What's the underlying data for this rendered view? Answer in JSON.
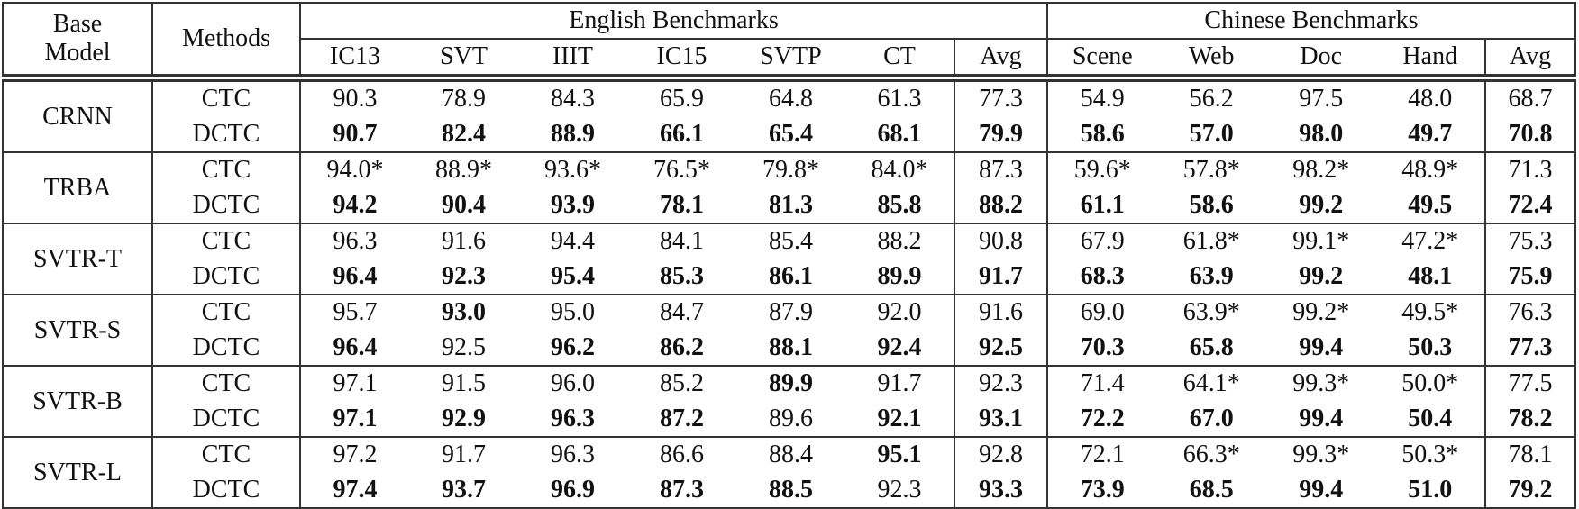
{
  "header": {
    "base_model": "Base Model",
    "base_model_line1": "Base",
    "base_model_line2": "Model",
    "methods": "Methods",
    "english_group": "English Benchmarks",
    "chinese_group": "Chinese Benchmarks",
    "english_columns": [
      "IC13",
      "SVT",
      "IIIT",
      "IC15",
      "SVTP",
      "CT",
      "Avg"
    ],
    "chinese_columns": [
      "Scene",
      "Web",
      "Doc",
      "Hand",
      "Avg"
    ]
  },
  "groups": [
    {
      "base_model": "CRNN",
      "rows": [
        {
          "method": "CTC",
          "values": [
            "90.3",
            "78.9",
            "84.3",
            "65.9",
            "64.8",
            "61.3",
            "77.3",
            "54.9",
            "56.2",
            "97.5",
            "48.0",
            "68.7"
          ],
          "bold": []
        },
        {
          "method": "DCTC",
          "values": [
            "90.7",
            "82.4",
            "88.9",
            "66.1",
            "65.4",
            "68.1",
            "79.9",
            "58.6",
            "57.0",
            "98.0",
            "49.7",
            "70.8"
          ],
          "bold": [
            0,
            1,
            2,
            3,
            4,
            5,
            6,
            7,
            8,
            9,
            10,
            11
          ]
        }
      ]
    },
    {
      "base_model": "TRBA",
      "rows": [
        {
          "method": "CTC",
          "values": [
            "94.0*",
            "88.9*",
            "93.6*",
            "76.5*",
            "79.8*",
            "84.0*",
            "87.3",
            "59.6*",
            "57.8*",
            "98.2*",
            "48.9*",
            "71.3"
          ],
          "bold": []
        },
        {
          "method": "DCTC",
          "values": [
            "94.2",
            "90.4",
            "93.9",
            "78.1",
            "81.3",
            "85.8",
            "88.2",
            "61.1",
            "58.6",
            "99.2",
            "49.5",
            "72.4"
          ],
          "bold": [
            0,
            1,
            2,
            3,
            4,
            5,
            6,
            7,
            8,
            9,
            10,
            11
          ]
        }
      ]
    },
    {
      "base_model": "SVTR-T",
      "rows": [
        {
          "method": "CTC",
          "values": [
            "96.3",
            "91.6",
            "94.4",
            "84.1",
            "85.4",
            "88.2",
            "90.8",
            "67.9",
            "61.8*",
            "99.1*",
            "47.2*",
            "75.3"
          ],
          "bold": []
        },
        {
          "method": "DCTC",
          "values": [
            "96.4",
            "92.3",
            "95.4",
            "85.3",
            "86.1",
            "89.9",
            "91.7",
            "68.3",
            "63.9",
            "99.2",
            "48.1",
            "75.9"
          ],
          "bold": [
            0,
            1,
            2,
            3,
            4,
            5,
            6,
            7,
            8,
            9,
            10,
            11
          ]
        }
      ]
    },
    {
      "base_model": "SVTR-S",
      "rows": [
        {
          "method": "CTC",
          "values": [
            "95.7",
            "93.0",
            "95.0",
            "84.7",
            "87.9",
            "92.0",
            "91.6",
            "69.0",
            "63.9*",
            "99.2*",
            "49.5*",
            "76.3"
          ],
          "bold": [
            1
          ]
        },
        {
          "method": "DCTC",
          "values": [
            "96.4",
            "92.5",
            "96.2",
            "86.2",
            "88.1",
            "92.4",
            "92.5",
            "70.3",
            "65.8",
            "99.4",
            "50.3",
            "77.3"
          ],
          "bold": [
            0,
            2,
            3,
            4,
            5,
            6,
            7,
            8,
            9,
            10,
            11
          ]
        }
      ]
    },
    {
      "base_model": "SVTR-B",
      "rows": [
        {
          "method": "CTC",
          "values": [
            "97.1",
            "91.5",
            "96.0",
            "85.2",
            "89.9",
            "91.7",
            "92.3",
            "71.4",
            "64.1*",
            "99.3*",
            "50.0*",
            "77.5"
          ],
          "bold": [
            4
          ]
        },
        {
          "method": "DCTC",
          "values": [
            "97.1",
            "92.9",
            "96.3",
            "87.2",
            "89.6",
            "92.1",
            "93.1",
            "72.2",
            "67.0",
            "99.4",
            "50.4",
            "78.2"
          ],
          "bold": [
            0,
            1,
            2,
            3,
            5,
            6,
            7,
            8,
            9,
            10,
            11
          ]
        }
      ]
    },
    {
      "base_model": "SVTR-L",
      "rows": [
        {
          "method": "CTC",
          "values": [
            "97.2",
            "91.7",
            "96.3",
            "86.6",
            "88.4",
            "95.1",
            "92.8",
            "72.1",
            "66.3*",
            "99.3*",
            "50.3*",
            "78.1"
          ],
          "bold": [
            5
          ]
        },
        {
          "method": "DCTC",
          "values": [
            "97.4",
            "93.7",
            "96.9",
            "87.3",
            "88.5",
            "92.3",
            "93.3",
            "73.9",
            "68.5",
            "99.4",
            "51.0",
            "79.2"
          ],
          "bold": [
            0,
            1,
            2,
            3,
            4,
            6,
            7,
            8,
            9,
            10,
            11
          ]
        }
      ]
    }
  ]
}
